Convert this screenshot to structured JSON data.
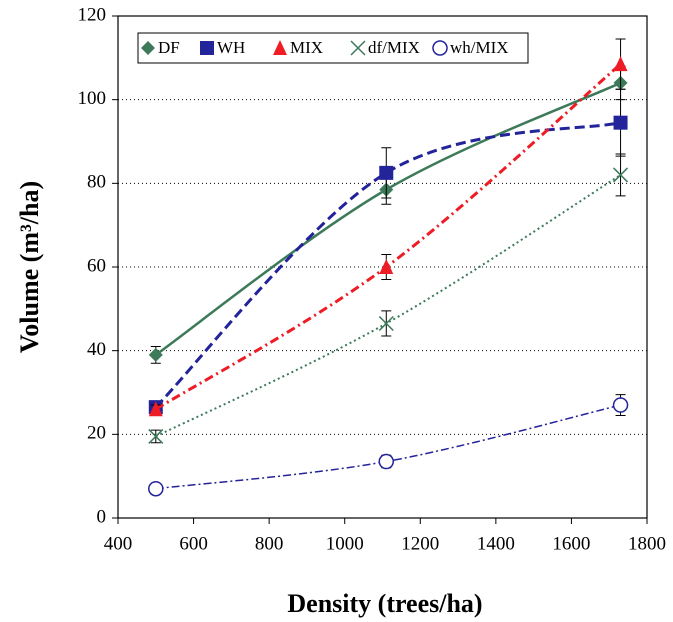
{
  "chart_data": {
    "type": "line",
    "x_label": "Density (trees/ha)",
    "y_label": "Volume (m³/ha)",
    "xlim": [
      400,
      1800
    ],
    "xticks": [
      400,
      600,
      800,
      1000,
      1200,
      1400,
      1600,
      1800
    ],
    "ylim": [
      0,
      120
    ],
    "yticks": [
      0,
      20,
      40,
      60,
      80,
      100,
      120
    ],
    "grid": true,
    "x": [
      500,
      1110,
      1730
    ],
    "series": [
      {
        "name": "DF",
        "color": "#3d7a5a",
        "marker": "diamond",
        "dash": "solid",
        "values": [
          39,
          78.5,
          104
        ],
        "errors": [
          2,
          3.5,
          4
        ]
      },
      {
        "name": "WH",
        "color": "#23239a",
        "marker": "square",
        "dash": "dashed",
        "values": [
          26.5,
          82.5,
          94.5
        ],
        "errors": [
          0.5,
          6,
          8
        ]
      },
      {
        "name": "MIX",
        "color": "#ee1c24",
        "marker": "triangle",
        "dash": "dashdot",
        "values": [
          26,
          60,
          108.5
        ],
        "errors": [
          1,
          3,
          6
        ]
      },
      {
        "name": "df/MIX",
        "color": "#3d7a5a",
        "marker": "x",
        "dash": "dotted",
        "values": [
          19.5,
          46.5,
          82
        ],
        "errors": [
          1.5,
          3,
          5
        ]
      },
      {
        "name": "wh/MIX",
        "color": "#23239a",
        "marker": "circle",
        "dash": "dashdotthin",
        "values": [
          7,
          13.5,
          27
        ],
        "errors": [
          1,
          1.5,
          2.5
        ]
      }
    ]
  }
}
